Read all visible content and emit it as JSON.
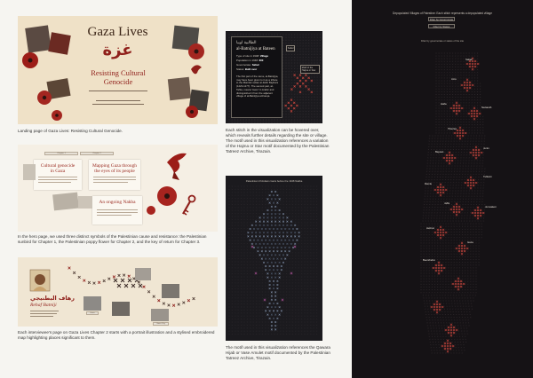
{
  "landing": {
    "title": "Gaza Lives",
    "title_ar": "غزة",
    "subtitle_line1": "Resisting Cultural",
    "subtitle_line2": "Genocide",
    "caption": "Landing page of Gaza Lives: Resisting Cultural Genocide."
  },
  "hero": {
    "chip1": "Chapter 1",
    "chip2": "Chapter 2",
    "card1_title_line1": "Cultural genocide",
    "card1_title_line2": "in Gaza",
    "card2_title_line1": "Mapping Gaza through",
    "card2_title_line2": "the eyes of its people",
    "card3_title": "An ongoing Nakba",
    "caption_line1": "In the hero page, we used three distinct symbols of the Palestinian cause and resistance: the Palestinian",
    "caption_line2": "sunbird for Chapter 1, the Palestinian poppy flower for Chapter 2, and the key of return for Chapter 3."
  },
  "chapter": {
    "name_ar": "رهاف البطنيجي",
    "name_en": "Rehaf Batniji",
    "label_gaza": "Gaza",
    "label_gaza_city": "Gaza City",
    "caption_line1": "Each interviewee's page on Gaza Lives Chapter 2 starts with a portrait illustration and a stylised embroidered",
    "caption_line2": "map highlighting places significant to them."
  },
  "hover": {
    "tooltip_ar": "الطالبية اوبيا",
    "tooltip_title": "al-Batnijiya at Bateen",
    "type_label": "Type of site in 1948:",
    "type_value": "Village",
    "pop_label": "Population in 1948:",
    "pop_value": "600",
    "gov_label": "Governorate:",
    "gov_value": "Safad",
    "status_label": "Status:",
    "status_value": "Built over",
    "body": "The first part of the name, al-Batnijiya, may have been given to it as a tribute to the Mamluk sultan al-Zahir Baybars (1223-1277). The second part, al-Tahta, means 'lower' in Arabic and distinguished it from the adjacent village of al-Batnijiya al-Fauqa.",
    "side_label": "Safad",
    "tag": "Motif of the Hajma or Star",
    "caption_line1": "Each stitch in the visualization can be hovered over,",
    "caption_line2": "which reveals further details regarding the site or village.",
    "caption_line3": "The motif used in this visualization references a variation",
    "caption_line4": "of the Hajma or Star motif documented by the Palestinian",
    "caption_line5": "Tatreez Archive, Tirazain."
  },
  "qawara": {
    "header": "Palestinian Christians Gaza before the 1948 Nakba",
    "caption_line1": "The motif used in this visualization references the Qawara",
    "caption_line2": "Hijab or Vase Amulet motif documented by the Palestinian",
    "caption_line3": "Tatreez Archive, Tirazain."
  },
  "map": {
    "header": "Depopulated Villages of Palestine: Each stitch represents a depopulated village",
    "subheader": "Filter by governorate or status of the site",
    "filter1": "Filter by Governorate",
    "filter2": "Filter by Status",
    "towns": [
      "Safad",
      "Acre",
      "Haifa",
      "Nazareth",
      "Tiberias",
      "Baysan",
      "Jenin",
      "Tulkarm",
      "Ramle",
      "Jaffa",
      "Jerusalem",
      "Hebron",
      "Gaza",
      "Beersheba"
    ]
  },
  "colors": {
    "accent_red": "#8f1f1a",
    "panel_cream": "#efe1c7",
    "dark_bg": "#151215",
    "stitch_red": "#c9463d"
  }
}
